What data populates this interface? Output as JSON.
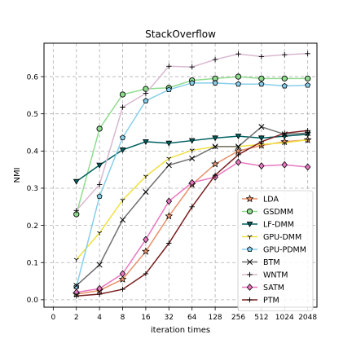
{
  "chart_data": {
    "type": "line",
    "title": "StackOverflow",
    "xlabel": "iteration times",
    "ylabel": "NMI",
    "x_tick_labels": [
      "0",
      "2",
      "4",
      "8",
      "16",
      "32",
      "64",
      "128",
      "256",
      "512",
      "1024",
      "2048"
    ],
    "x": [
      2,
      4,
      8,
      16,
      32,
      64,
      128,
      256,
      512,
      1024,
      2048
    ],
    "y_ticks": [
      0.0,
      0.1,
      0.2,
      0.3,
      0.4,
      0.5,
      0.6
    ],
    "y_tick_labels": [
      "0.0",
      "0.1",
      "0.2",
      "0.3",
      "0.4",
      "0.5",
      "0.6"
    ],
    "ylim": [
      -0.02,
      0.69
    ],
    "grid": true,
    "legend_position": "lower-right",
    "series": [
      {
        "name": "LDA",
        "color": "#e8916a",
        "marker": "star",
        "values": [
          0.015,
          0.025,
          0.055,
          0.13,
          0.225,
          0.31,
          0.365,
          0.4,
          0.415,
          0.425,
          0.43
        ]
      },
      {
        "name": "GSDMM",
        "color": "#8fdc8f",
        "marker": "circle",
        "values": [
          0.23,
          0.46,
          0.552,
          0.567,
          0.57,
          0.59,
          0.595,
          0.6,
          0.595,
          0.595,
          0.595
        ]
      },
      {
        "name": "LF-DMM",
        "color": "#006060",
        "marker": "triangle-down",
        "values": [
          0.318,
          0.362,
          0.403,
          0.425,
          0.421,
          0.428,
          0.435,
          0.44,
          0.435,
          0.44,
          0.445
        ]
      },
      {
        "name": "GPU-DMM",
        "color": "#f0e040",
        "marker": "tri-down",
        "values": [
          0.108,
          0.18,
          0.268,
          0.332,
          0.38,
          0.402,
          0.412,
          0.412,
          0.418,
          0.422,
          0.43
        ]
      },
      {
        "name": "GPU-PDMM",
        "color": "#87ceeb",
        "marker": "pentagon",
        "values": [
          0.035,
          0.278,
          0.436,
          0.535,
          0.565,
          0.583,
          0.583,
          0.58,
          0.58,
          0.575,
          0.577
        ]
      },
      {
        "name": "BTM",
        "color": "#707070",
        "marker": "x",
        "values": [
          0.038,
          0.094,
          0.215,
          0.29,
          0.362,
          0.38,
          0.412,
          0.412,
          0.465,
          0.445,
          0.448
        ]
      },
      {
        "name": "WNTM",
        "color": "#d8b8d0",
        "marker": "plus",
        "values": [
          0.24,
          0.31,
          0.518,
          0.555,
          0.628,
          0.626,
          0.646,
          0.661,
          0.654,
          0.659,
          0.662
        ]
      },
      {
        "name": "SATM",
        "color": "#e878c0",
        "marker": "diamond",
        "values": [
          0.02,
          0.03,
          0.07,
          0.162,
          0.265,
          0.315,
          0.33,
          0.37,
          0.36,
          0.363,
          0.357
        ]
      },
      {
        "name": "PTM",
        "color": "#7b2020",
        "marker": "plus",
        "values": [
          0.01,
          0.015,
          0.028,
          0.07,
          0.152,
          0.25,
          0.335,
          0.39,
          0.425,
          0.448,
          0.455
        ]
      }
    ]
  }
}
